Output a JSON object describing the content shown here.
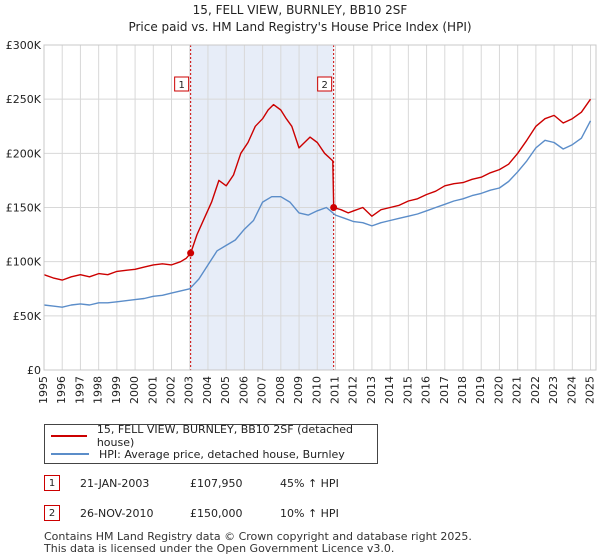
{
  "chart_data": {
    "type": "line",
    "title": "15, FELL VIEW, BURNLEY, BB10 2SF",
    "subtitle": "Price paid vs. HM Land Registry's House Price Index (HPI)",
    "ylim": [
      0,
      300000
    ],
    "xlim": [
      1995,
      2025.3
    ],
    "y_ticks": [
      {
        "value": 0,
        "label": "£0"
      },
      {
        "value": 50000,
        "label": "£50K"
      },
      {
        "value": 100000,
        "label": "£100K"
      },
      {
        "value": 150000,
        "label": "£150K"
      },
      {
        "value": 200000,
        "label": "£200K"
      },
      {
        "value": 250000,
        "label": "£250K"
      },
      {
        "value": 300000,
        "label": "£300K"
      }
    ],
    "x_ticks": [
      "1995",
      "1996",
      "1997",
      "1998",
      "1999",
      "2000",
      "2001",
      "2002",
      "2003",
      "2004",
      "2005",
      "2006",
      "2007",
      "2008",
      "2009",
      "2010",
      "2011",
      "2012",
      "2013",
      "2014",
      "2015",
      "2016",
      "2017",
      "2018",
      "2019",
      "2020",
      "2021",
      "2022",
      "2023",
      "2024",
      "2025"
    ],
    "shaded_period": [
      2003.05,
      2010.9
    ],
    "series": [
      {
        "name": "15, FELL VIEW, BURNLEY, BB10 2SF (detached house)",
        "color": "#cc0000",
        "x": [
          1995,
          1995.5,
          1996,
          1996.5,
          1997,
          1997.5,
          1998,
          1998.5,
          1999,
          1999.5,
          2000,
          2000.5,
          2001,
          2001.5,
          2002,
          2002.5,
          2002.8,
          2003.05,
          2003.4,
          2003.8,
          2004.2,
          2004.6,
          2005,
          2005.4,
          2005.8,
          2006.2,
          2006.6,
          2007,
          2007.3,
          2007.6,
          2008,
          2008.3,
          2008.6,
          2009,
          2009.3,
          2009.6,
          2010,
          2010.4,
          2010.85,
          2010.9,
          2011.3,
          2011.7,
          2012,
          2012.5,
          2013,
          2013.5,
          2014,
          2014.5,
          2015,
          2015.5,
          2016,
          2016.5,
          2017,
          2017.5,
          2018,
          2018.5,
          2019,
          2019.5,
          2020,
          2020.5,
          2021,
          2021.5,
          2022,
          2022.5,
          2023,
          2023.5,
          2024,
          2024.5,
          2025
        ],
        "values": [
          88000,
          85000,
          83000,
          86000,
          88000,
          86000,
          89000,
          88000,
          91000,
          92000,
          93000,
          95000,
          97000,
          98000,
          97000,
          100000,
          103000,
          107950,
          125000,
          140000,
          155000,
          175000,
          170000,
          180000,
          200000,
          210000,
          225000,
          232000,
          240000,
          245000,
          240000,
          232000,
          225000,
          205000,
          210000,
          215000,
          210000,
          200000,
          193000,
          150000,
          148000,
          145000,
          147000,
          150000,
          142000,
          148000,
          150000,
          152000,
          156000,
          158000,
          162000,
          165000,
          170000,
          172000,
          173000,
          176000,
          178000,
          182000,
          185000,
          190000,
          200000,
          212000,
          225000,
          232000,
          235000,
          228000,
          232000,
          238000,
          250000
        ]
      },
      {
        "name": "HPI: Average price, detached house, Burnley",
        "color": "#5b8dc9",
        "x": [
          1995,
          1995.5,
          1996,
          1996.5,
          1997,
          1997.5,
          1998,
          1998.5,
          1999,
          1999.5,
          2000,
          2000.5,
          2001,
          2001.5,
          2002,
          2002.5,
          2003,
          2003.5,
          2004,
          2004.5,
          2005,
          2005.5,
          2006,
          2006.5,
          2007,
          2007.5,
          2008,
          2008.5,
          2009,
          2009.5,
          2010,
          2010.5,
          2011,
          2011.5,
          2012,
          2012.5,
          2013,
          2013.5,
          2014,
          2014.5,
          2015,
          2015.5,
          2016,
          2016.5,
          2017,
          2017.5,
          2018,
          2018.5,
          2019,
          2019.5,
          2020,
          2020.5,
          2021,
          2021.5,
          2022,
          2022.5,
          2023,
          2023.5,
          2024,
          2024.5,
          2025
        ],
        "values": [
          60000,
          59000,
          58000,
          60000,
          61000,
          60000,
          62000,
          62000,
          63000,
          64000,
          65000,
          66000,
          68000,
          69000,
          71000,
          73000,
          75000,
          84000,
          97000,
          110000,
          115000,
          120000,
          130000,
          138000,
          155000,
          160000,
          160000,
          155000,
          145000,
          143000,
          147000,
          150000,
          143000,
          140000,
          137000,
          136000,
          133000,
          136000,
          138000,
          140000,
          142000,
          144000,
          147000,
          150000,
          153000,
          156000,
          158000,
          161000,
          163000,
          166000,
          168000,
          174000,
          183000,
          193000,
          205000,
          212000,
          210000,
          204000,
          208000,
          214000,
          230000
        ]
      }
    ],
    "annotations": [
      {
        "label": "1",
        "x": 2003.05
      },
      {
        "label": "2",
        "x": 2010.9
      }
    ],
    "sale_points": [
      {
        "x": 2003.05,
        "value": 107950
      },
      {
        "x": 2010.9,
        "value": 150000
      }
    ]
  },
  "legend": {
    "series1": "15, FELL VIEW, BURNLEY, BB10 2SF (detached house)",
    "series2": "HPI: Average price, detached house, Burnley"
  },
  "transactions": [
    {
      "num": "1",
      "date": "21-JAN-2003",
      "price": "£107,950",
      "hpi": "45% ↑ HPI"
    },
    {
      "num": "2",
      "date": "26-NOV-2010",
      "price": "£150,000",
      "hpi": "10% ↑ HPI"
    }
  ],
  "footer": {
    "line1": "Contains HM Land Registry data © Crown copyright and database right 2025.",
    "line2": "This data is licensed under the Open Government Licence v3.0."
  }
}
